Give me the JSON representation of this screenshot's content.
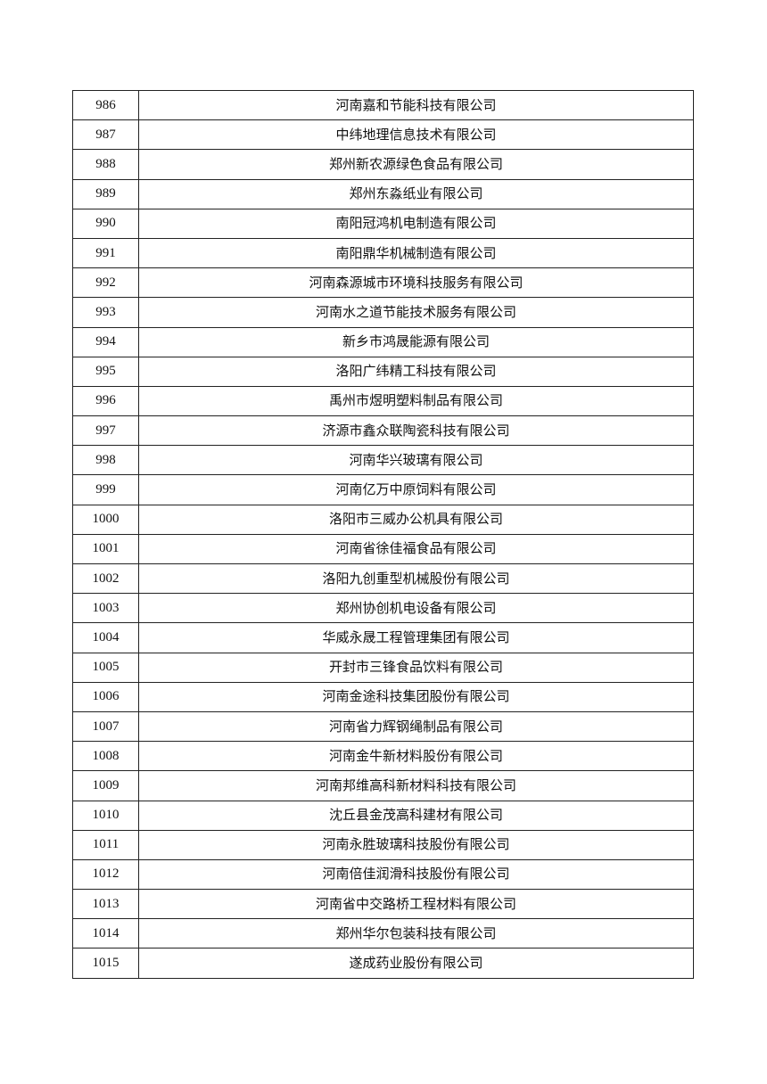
{
  "rows": [
    {
      "no": "986",
      "name": "河南嘉和节能科技有限公司"
    },
    {
      "no": "987",
      "name": "中纬地理信息技术有限公司"
    },
    {
      "no": "988",
      "name": "郑州新农源绿色食品有限公司"
    },
    {
      "no": "989",
      "name": "郑州东淼纸业有限公司"
    },
    {
      "no": "990",
      "name": "南阳冠鸿机电制造有限公司"
    },
    {
      "no": "991",
      "name": "南阳鼎华机械制造有限公司"
    },
    {
      "no": "992",
      "name": "河南森源城市环境科技服务有限公司"
    },
    {
      "no": "993",
      "name": "河南水之道节能技术服务有限公司"
    },
    {
      "no": "994",
      "name": "新乡市鸿晟能源有限公司"
    },
    {
      "no": "995",
      "name": "洛阳广纬精工科技有限公司"
    },
    {
      "no": "996",
      "name": "禹州市煜明塑料制品有限公司"
    },
    {
      "no": "997",
      "name": "济源市鑫众联陶瓷科技有限公司"
    },
    {
      "no": "998",
      "name": "河南华兴玻璃有限公司"
    },
    {
      "no": "999",
      "name": "河南亿万中原饲料有限公司"
    },
    {
      "no": "1000",
      "name": "洛阳市三威办公机具有限公司"
    },
    {
      "no": "1001",
      "name": "河南省徐佳福食品有限公司"
    },
    {
      "no": "1002",
      "name": "洛阳九创重型机械股份有限公司"
    },
    {
      "no": "1003",
      "name": "郑州协创机电设备有限公司"
    },
    {
      "no": "1004",
      "name": "华威永晟工程管理集团有限公司"
    },
    {
      "no": "1005",
      "name": "开封市三锋食品饮料有限公司"
    },
    {
      "no": "1006",
      "name": "河南金途科技集团股份有限公司"
    },
    {
      "no": "1007",
      "name": "河南省力辉钢绳制品有限公司"
    },
    {
      "no": "1008",
      "name": "河南金牛新材料股份有限公司"
    },
    {
      "no": "1009",
      "name": "河南邦维高科新材料科技有限公司"
    },
    {
      "no": "1010",
      "name": "沈丘县金茂高科建材有限公司"
    },
    {
      "no": "1011",
      "name": "河南永胜玻璃科技股份有限公司"
    },
    {
      "no": "1012",
      "name": "河南倍佳润滑科技股份有限公司"
    },
    {
      "no": "1013",
      "name": "河南省中交路桥工程材料有限公司"
    },
    {
      "no": "1014",
      "name": "郑州华尔包装科技有限公司"
    },
    {
      "no": "1015",
      "name": "遂成药业股份有限公司"
    }
  ]
}
